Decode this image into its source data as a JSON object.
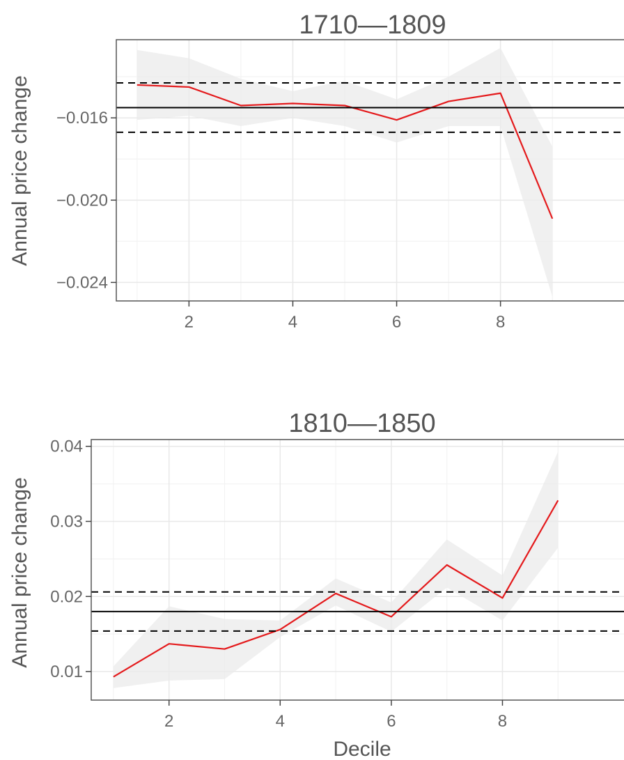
{
  "chart_data": [
    {
      "type": "line",
      "title": "1710––1809",
      "xlabel": "",
      "ylabel": "Annual price change",
      "xlim": [
        0.6,
        10.5
      ],
      "ylim": [
        -0.0249,
        -0.0122
      ],
      "xticks": [
        2,
        4,
        6,
        8
      ],
      "xtick_labels": [
        "2",
        "4",
        "6",
        "8"
      ],
      "yticks": [
        -0.016,
        -0.02,
        -0.024
      ],
      "ytick_labels": [
        "−0.016",
        "−0.020",
        "−0.024"
      ],
      "grid": true,
      "series": [
        {
          "color": "#e41a1c",
          "x": [
            1,
            2,
            3,
            4,
            5,
            6,
            7,
            8,
            9
          ],
          "y": [
            -0.0144,
            -0.0145,
            -0.0154,
            -0.0153,
            -0.0154,
            -0.0161,
            -0.0152,
            -0.0148,
            -0.0209
          ],
          "ci_low": [
            -0.0161,
            -0.0159,
            -0.0164,
            -0.016,
            -0.0164,
            -0.0172,
            -0.0164,
            -0.0164,
            -0.0247
          ],
          "ci_high": [
            -0.0127,
            -0.0131,
            -0.0141,
            -0.0147,
            -0.0142,
            -0.0151,
            -0.014,
            -0.0126,
            -0.0174
          ]
        }
      ],
      "hlines": [
        {
          "y": -0.0155,
          "style": "solid",
          "color": "#000000"
        },
        {
          "y": -0.0143,
          "style": "dashed",
          "color": "#000000"
        },
        {
          "y": -0.0167,
          "style": "dashed",
          "color": "#000000"
        }
      ]
    },
    {
      "type": "line",
      "title": "1810––1850",
      "xlabel": "Decile",
      "ylabel": "Annual price change",
      "xlim": [
        0.6,
        10.3
      ],
      "ylim": [
        0.0062,
        0.0409
      ],
      "xticks": [
        2,
        4,
        6,
        8
      ],
      "xtick_labels": [
        "2",
        "4",
        "6",
        "8"
      ],
      "yticks": [
        0.04,
        0.03,
        0.02,
        0.01
      ],
      "ytick_labels": [
        "0.04",
        "0.03",
        "0.02",
        "0.01"
      ],
      "grid": true,
      "series": [
        {
          "color": "#e41a1c",
          "x": [
            1,
            2,
            3,
            4,
            5,
            6,
            7,
            8,
            9
          ],
          "y": [
            0.0093,
            0.0137,
            0.013,
            0.0156,
            0.0204,
            0.0173,
            0.0242,
            0.0198,
            0.0328
          ],
          "ci_low": [
            0.0078,
            0.0088,
            0.009,
            0.0146,
            0.0188,
            0.0153,
            0.0212,
            0.0168,
            0.0265
          ],
          "ci_high": [
            0.0107,
            0.0187,
            0.017,
            0.0168,
            0.0224,
            0.0192,
            0.0276,
            0.0228,
            0.0393
          ]
        }
      ],
      "hlines": [
        {
          "y": 0.018,
          "style": "solid",
          "color": "#000000"
        },
        {
          "y": 0.0206,
          "style": "dashed",
          "color": "#000000"
        },
        {
          "y": 0.0154,
          "style": "dashed",
          "color": "#000000"
        }
      ]
    }
  ]
}
